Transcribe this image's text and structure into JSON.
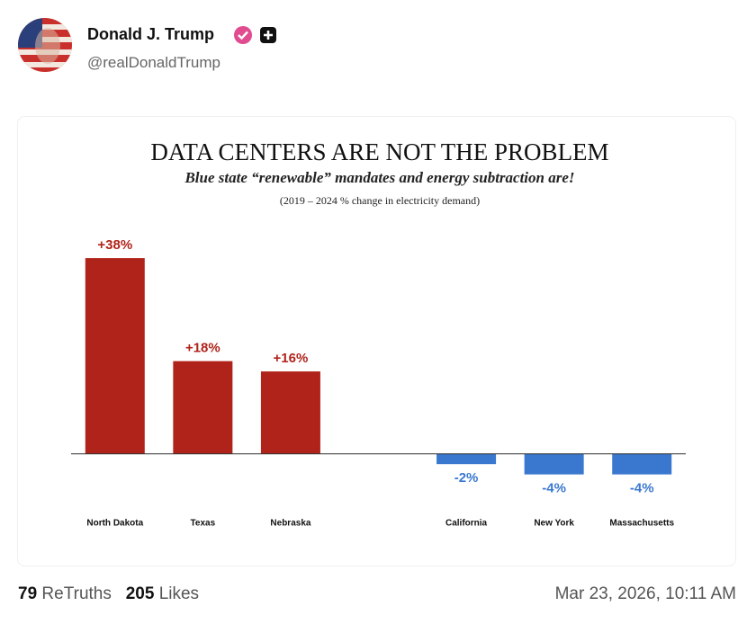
{
  "post": {
    "author": "Donald J. Trump",
    "handle": "@realDonaldTrump",
    "retruths_count": "79",
    "retruths_label": "ReTruths",
    "likes_count": "205",
    "likes_label": "Likes",
    "timestamp": "Mar 23, 2026, 10:11 AM"
  },
  "chart_data": {
    "type": "bar",
    "title": "DATA CENTERS ARE NOT THE PROBLEM",
    "subtitle": "Blue state “renewable” mandates and energy subtraction are!",
    "note": "(2019 – 2024 % change in electricity demand)",
    "categories": [
      "North Dakota",
      "Texas",
      "Nebraska",
      null,
      "California",
      "New York",
      "Massachusetts"
    ],
    "values": [
      38,
      18,
      16,
      null,
      -2,
      -4,
      -4
    ],
    "value_labels": [
      "+38%",
      "+18%",
      "+16%",
      null,
      "-2%",
      "-4%",
      "-4%"
    ],
    "positive_color": "#b0231a",
    "negative_color": "#3a78d0",
    "ylim": [
      -10,
      45
    ]
  }
}
